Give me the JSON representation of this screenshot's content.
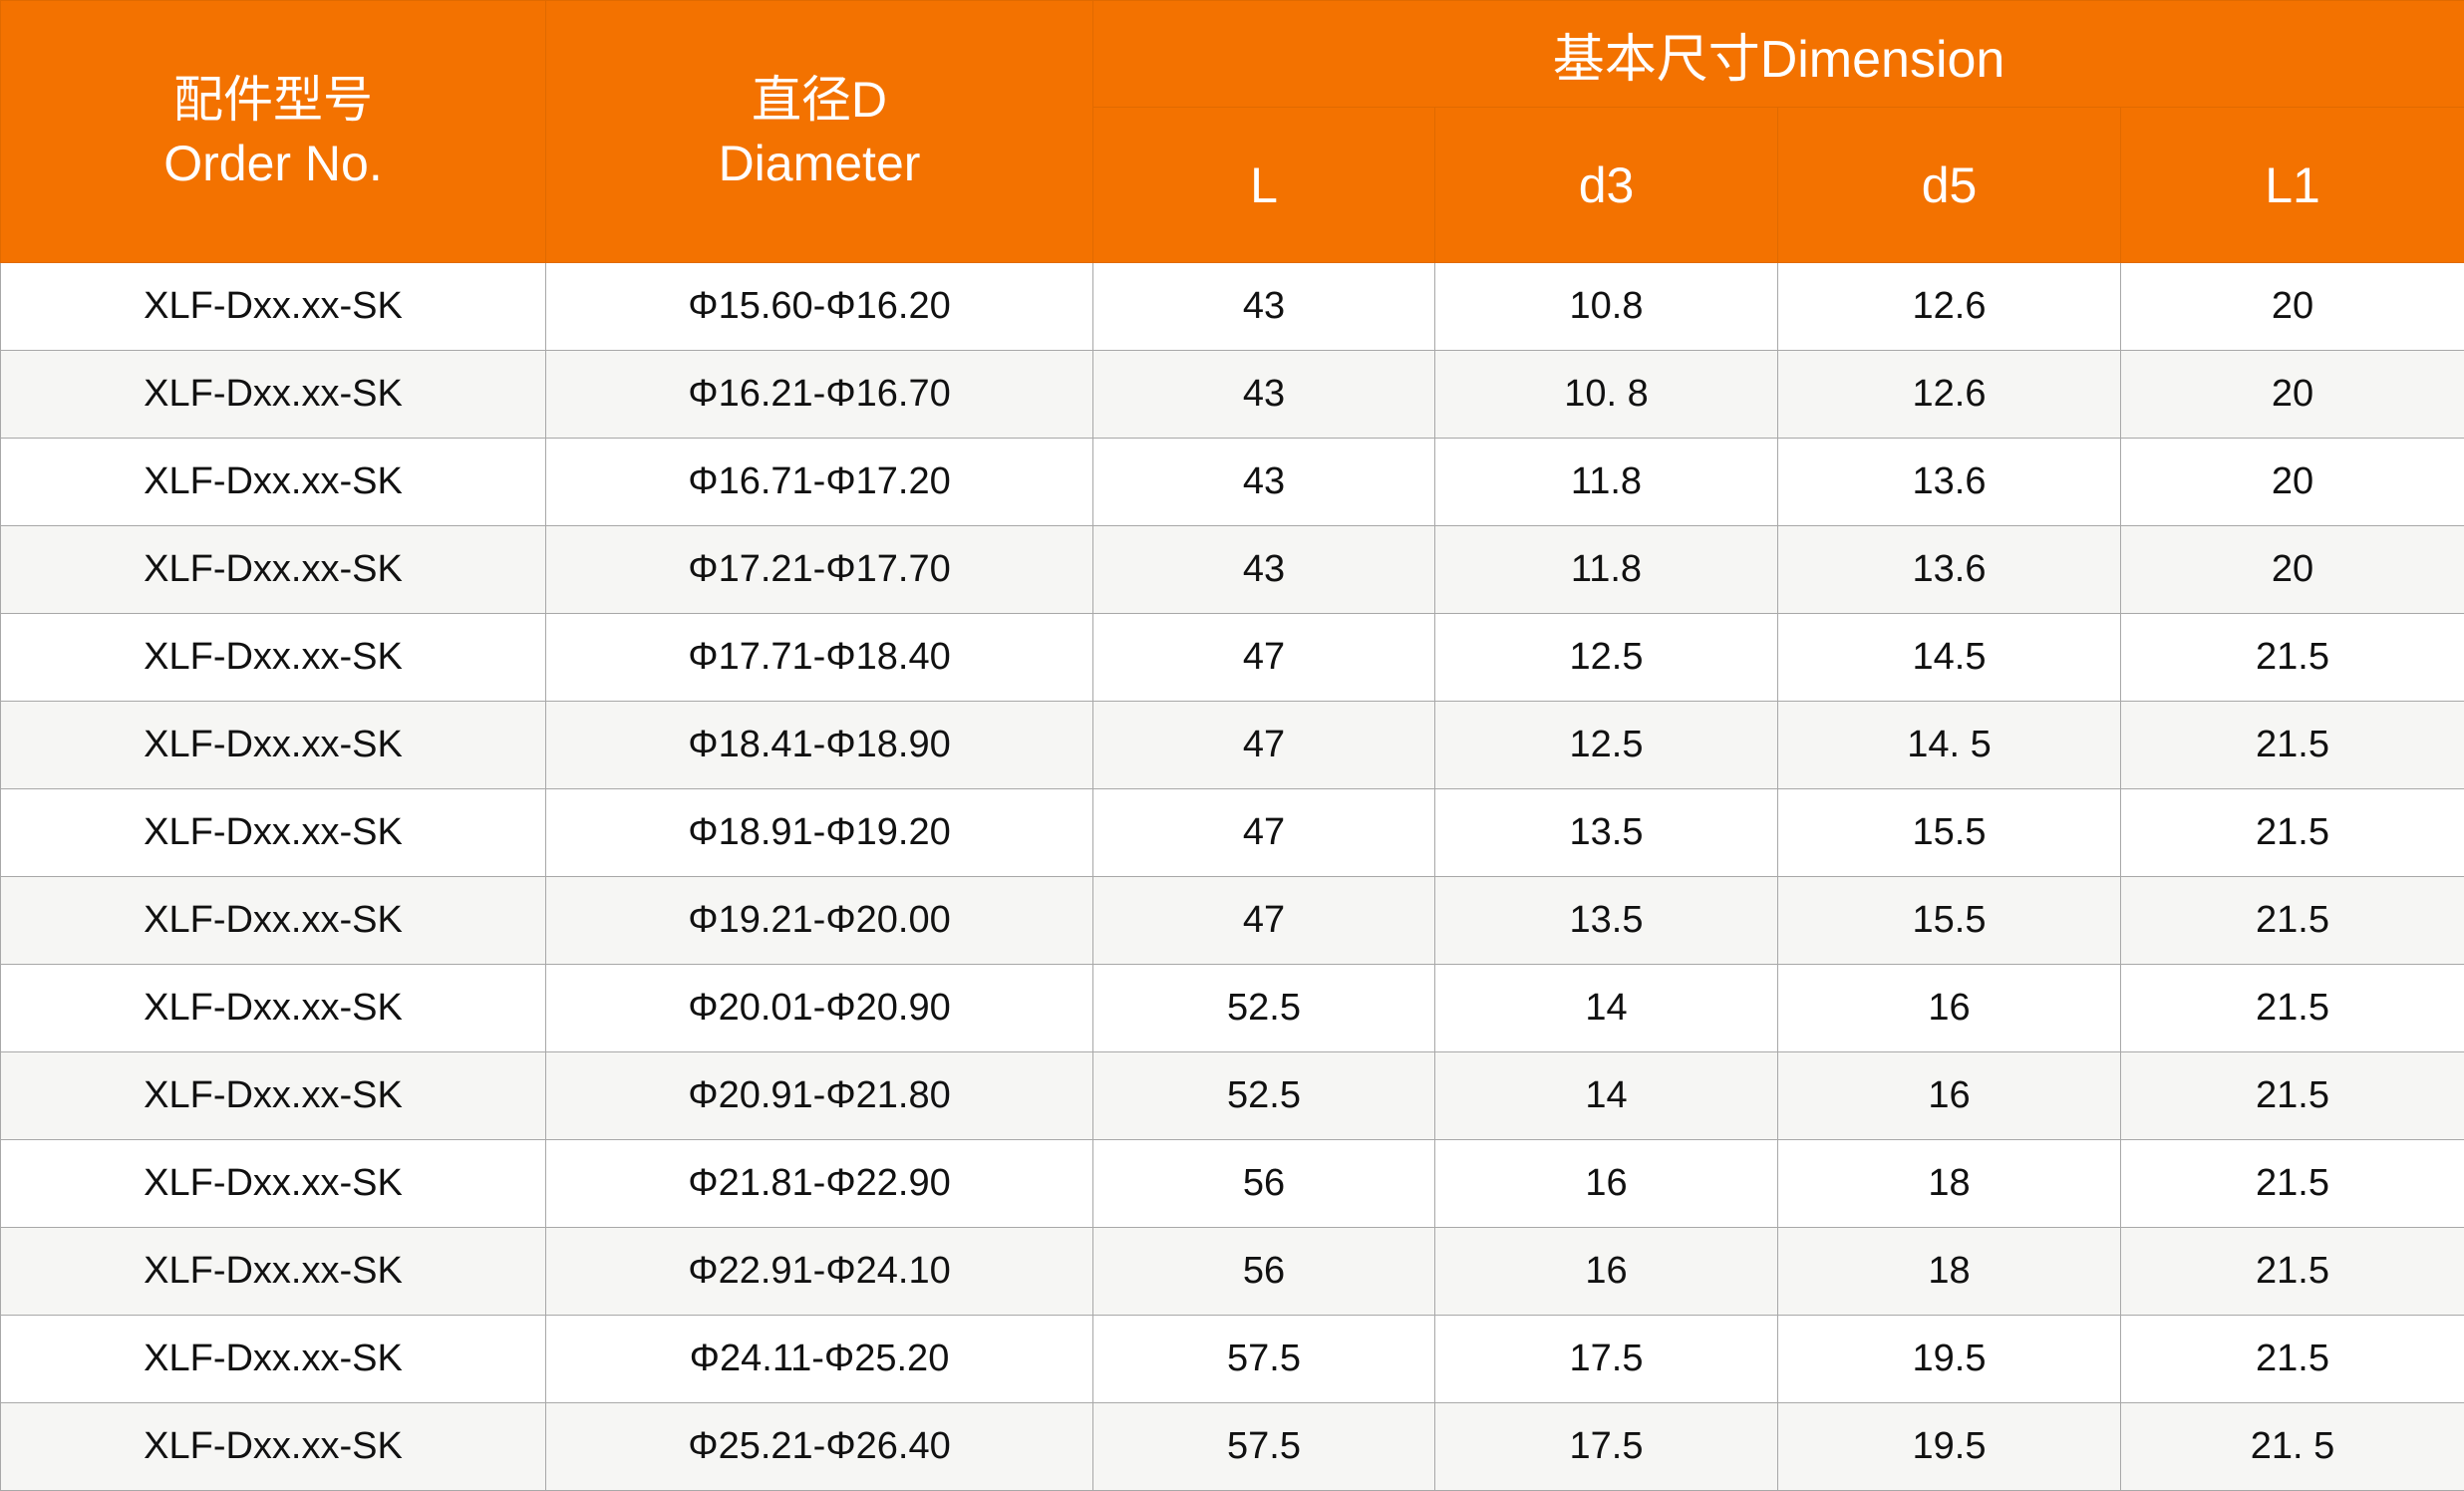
{
  "header": {
    "order_no_cn": "配件型号",
    "order_no_en": "Order No.",
    "diameter_cn": "直径D",
    "diameter_en": "Diameter",
    "dimension": "基本尺寸Dimension",
    "sub_columns": [
      "L",
      "d3",
      "d5",
      "L1"
    ]
  },
  "colors": {
    "header_bg": "#F37200",
    "alt_row_bg": "#F6F6F4"
  },
  "rows": [
    [
      "XLF-Dxx.xx-SK",
      "Φ15.60-Φ16.20",
      "43",
      "10.8",
      "12.6",
      "20"
    ],
    [
      "XLF-Dxx.xx-SK",
      "Φ16.21-Φ16.70",
      "43",
      "10. 8",
      "12.6",
      "20"
    ],
    [
      "XLF-Dxx.xx-SK",
      "Φ16.71-Φ17.20",
      "43",
      "11.8",
      "13.6",
      "20"
    ],
    [
      "XLF-Dxx.xx-SK",
      "Φ17.21-Φ17.70",
      "43",
      "11.8",
      "13.6",
      "20"
    ],
    [
      "XLF-Dxx.xx-SK",
      "Φ17.71-Φ18.40",
      "47",
      "12.5",
      "14.5",
      "21.5"
    ],
    [
      "XLF-Dxx.xx-SK",
      "Φ18.41-Φ18.90",
      "47",
      "12.5",
      "14. 5",
      "21.5"
    ],
    [
      "XLF-Dxx.xx-SK",
      "Φ18.91-Φ19.20",
      "47",
      "13.5",
      "15.5",
      "21.5"
    ],
    [
      "XLF-Dxx.xx-SK",
      "Φ19.21-Φ20.00",
      "47",
      "13.5",
      "15.5",
      "21.5"
    ],
    [
      "XLF-Dxx.xx-SK",
      "Φ20.01-Φ20.90",
      "52.5",
      "14",
      "16",
      "21.5"
    ],
    [
      "XLF-Dxx.xx-SK",
      "Φ20.91-Φ21.80",
      "52.5",
      "14",
      "16",
      "21.5"
    ],
    [
      "XLF-Dxx.xx-SK",
      "Φ21.81-Φ22.90",
      "56",
      "16",
      "18",
      "21.5"
    ],
    [
      "XLF-Dxx.xx-SK",
      "Φ22.91-Φ24.10",
      "56",
      "16",
      "18",
      "21.5"
    ],
    [
      "XLF-Dxx.xx-SK",
      "Φ24.11-Φ25.20",
      "57.5",
      "17.5",
      "19.5",
      "21.5"
    ],
    [
      "XLF-Dxx.xx-SK",
      "Φ25.21-Φ26.40",
      "57.5",
      "17.5",
      "19.5",
      "21. 5"
    ]
  ]
}
